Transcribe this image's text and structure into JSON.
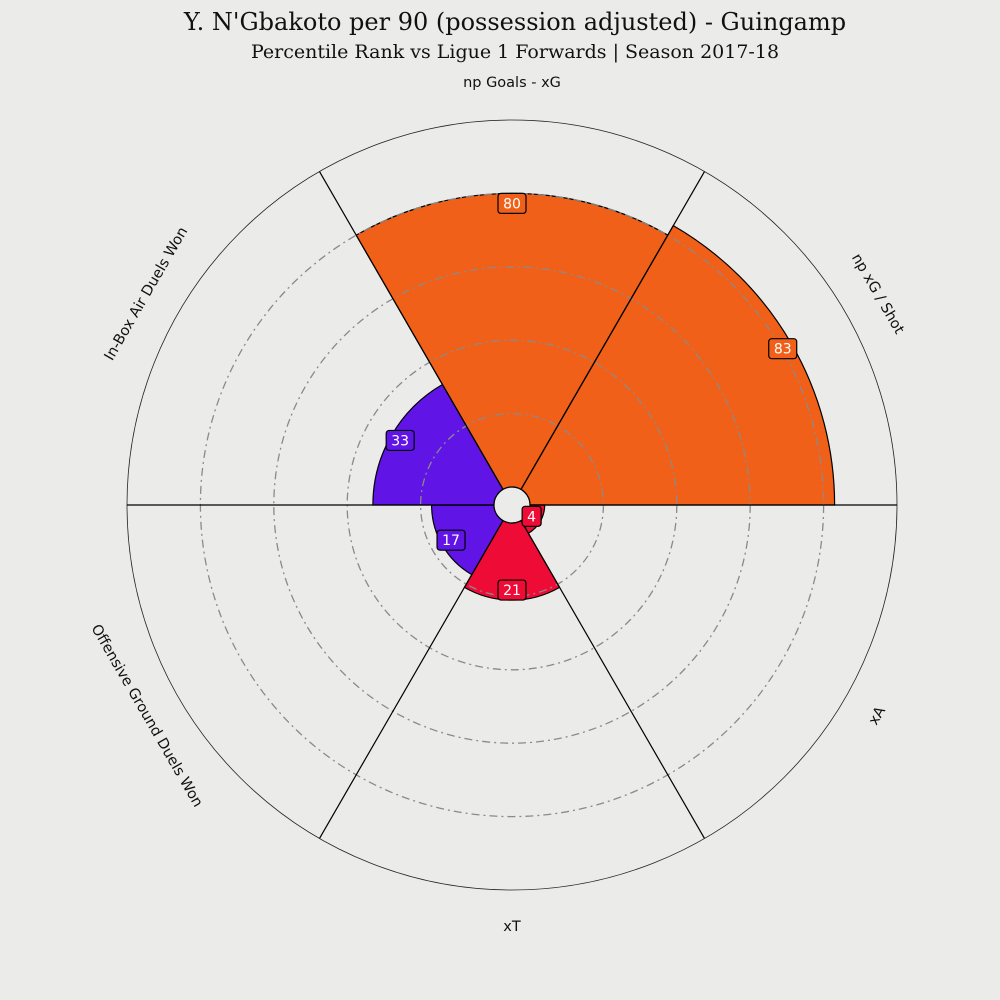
{
  "chart_data": {
    "type": "pie",
    "title": "Y. N'Gbakoto per 90 (possession adjusted) - Guingamp",
    "subtitle": "Percentile Rank vs Ligue 1 Forwards | Season 2017-18",
    "rlim": [
      0,
      100
    ],
    "grid": true,
    "categories": [
      "np Goals - xG",
      "np xG / Shot",
      "xA",
      "xT",
      "Offensive Ground Duels Won",
      "In-Box Air Duels Won"
    ],
    "values": [
      80,
      83,
      4,
      21,
      17,
      33
    ],
    "colors": [
      "#f16018",
      "#f16018",
      "#ee0c36",
      "#ee0c36",
      "#6014e6",
      "#6014e6"
    ]
  },
  "style": {
    "background": "#ebebe9",
    "edge_color": "#000000",
    "grid_color": "#8a8a8a",
    "center_fill": "#ebebe9"
  }
}
